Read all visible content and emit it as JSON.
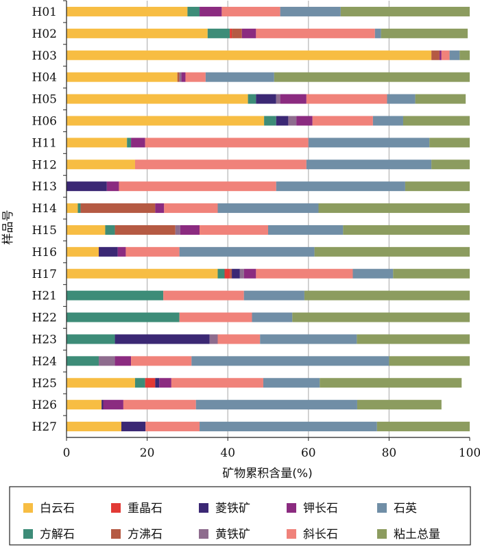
{
  "chart_data": {
    "type": "bar",
    "orientation": "horizontal",
    "stacked": true,
    "title": "",
    "xlabel": "矿物累积含量(%)",
    "ylabel": "样品号",
    "xlim": [
      0,
      100
    ],
    "x_ticks": [
      "0",
      "20",
      "40",
      "60",
      "80",
      "100"
    ],
    "grid": "vertical",
    "legend_position": "bottom",
    "categories": [
      "H01",
      "H02",
      "H03",
      "H04",
      "H05",
      "H06",
      "H11",
      "H12",
      "H13",
      "H14",
      "H15",
      "H16",
      "H17",
      "H21",
      "H22",
      "H23",
      "H24",
      "H25",
      "H26",
      "H27"
    ],
    "series": [
      {
        "name": "白云石",
        "color": "#f7bd43",
        "values": [
          30,
          35,
          90.5,
          27.5,
          45,
          49,
          15,
          17,
          0,
          2.8,
          9.6,
          8,
          37.5,
          0,
          0,
          0,
          0,
          17,
          8.7,
          13.6
        ]
      },
      {
        "name": "方解石",
        "color": "#3d8c78",
        "values": [
          3,
          5.5,
          0,
          0,
          2,
          3,
          1,
          0,
          0,
          0.7,
          2.4,
          0,
          1.7,
          24,
          28,
          12,
          8,
          2.5,
          0,
          0
        ]
      },
      {
        "name": "重晶石",
        "color": "#e23a35",
        "values": [
          0,
          0.5,
          0,
          0,
          0,
          0,
          0,
          0,
          0,
          0,
          0,
          0,
          1.3,
          0,
          0,
          0,
          0,
          2.5,
          0,
          0
        ]
      },
      {
        "name": "方沸石",
        "color": "#b55a43",
        "values": [
          0,
          2.5,
          2,
          0.5,
          0,
          0,
          0,
          0,
          0,
          18.5,
          15,
          0,
          0.5,
          0,
          0,
          0,
          0,
          0,
          0,
          0
        ]
      },
      {
        "name": "菱铁矿",
        "color": "#3b2874",
        "values": [
          0,
          0,
          0,
          0,
          5,
          3,
          0,
          0,
          10,
          0,
          0,
          4.7,
          2,
          0,
          0,
          23.5,
          0,
          1,
          0.4,
          6
        ]
      },
      {
        "name": "黄铁矿",
        "color": "#8e6c8e",
        "values": [
          0,
          0,
          0,
          0.5,
          1,
          2,
          0,
          0,
          0,
          0,
          1.2,
          0,
          1,
          0,
          0,
          2,
          4,
          0,
          0,
          0
        ]
      },
      {
        "name": "钾长石",
        "color": "#8b2b80",
        "values": [
          5.5,
          3.5,
          0.5,
          1,
          6.5,
          4,
          3.5,
          0,
          3,
          2.2,
          4.8,
          2,
          3,
          0,
          0,
          0,
          4,
          3,
          5,
          0
        ]
      },
      {
        "name": "斜长石",
        "color": "#f0827a",
        "values": [
          14.5,
          29.5,
          2,
          5,
          20,
          15,
          40.5,
          42.5,
          39,
          13.3,
          17,
          13.3,
          24,
          20,
          18,
          10.5,
          15,
          22.8,
          18,
          13.4
        ]
      },
      {
        "name": "石英",
        "color": "#708ea6",
        "values": [
          15,
          1.5,
          2.5,
          17,
          7,
          7.5,
          30,
          31,
          32,
          25,
          18.6,
          33.5,
          10,
          15,
          10,
          24,
          49,
          14,
          40,
          44
        ]
      },
      {
        "name": "粘土总量",
        "color": "#8c9c5f",
        "values": [
          32,
          21.5,
          2.5,
          48.5,
          12.5,
          16.5,
          10,
          9.5,
          16,
          37.5,
          31.4,
          38.5,
          19,
          41,
          44,
          28,
          20,
          35.2,
          20.9,
          23
        ]
      }
    ],
    "legend": [
      [
        "白云石",
        "重晶石",
        "菱铁矿",
        "钾长石",
        "石英"
      ],
      [
        "方解石",
        "方沸石",
        "黄铁矿",
        "斜长石",
        "粘土总量"
      ]
    ]
  }
}
